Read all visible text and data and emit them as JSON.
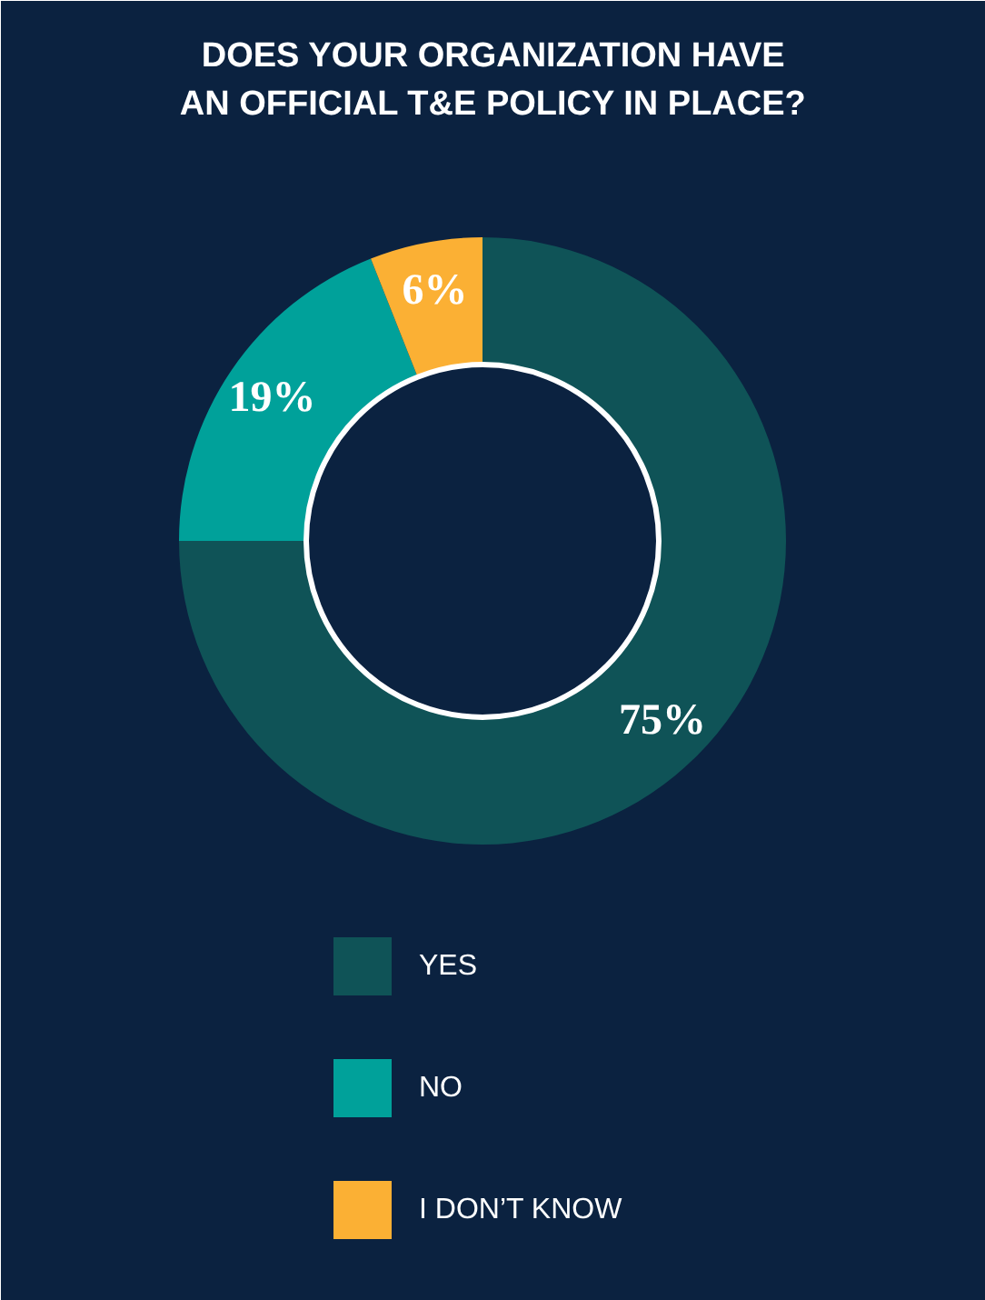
{
  "chart_data": {
    "type": "donut",
    "title": "DOES YOUR ORGANIZATION HAVE\nAN OFFICIAL T&E POLICY IN PLACE?",
    "categories": [
      "YES",
      "NO",
      "I DON’T KNOW"
    ],
    "values": [
      75,
      19,
      6
    ],
    "colors": [
      "#0f5357",
      "#00a19a",
      "#fbb034"
    ],
    "value_labels": [
      "75%",
      "19%",
      "6%"
    ],
    "legend": "bottom"
  }
}
